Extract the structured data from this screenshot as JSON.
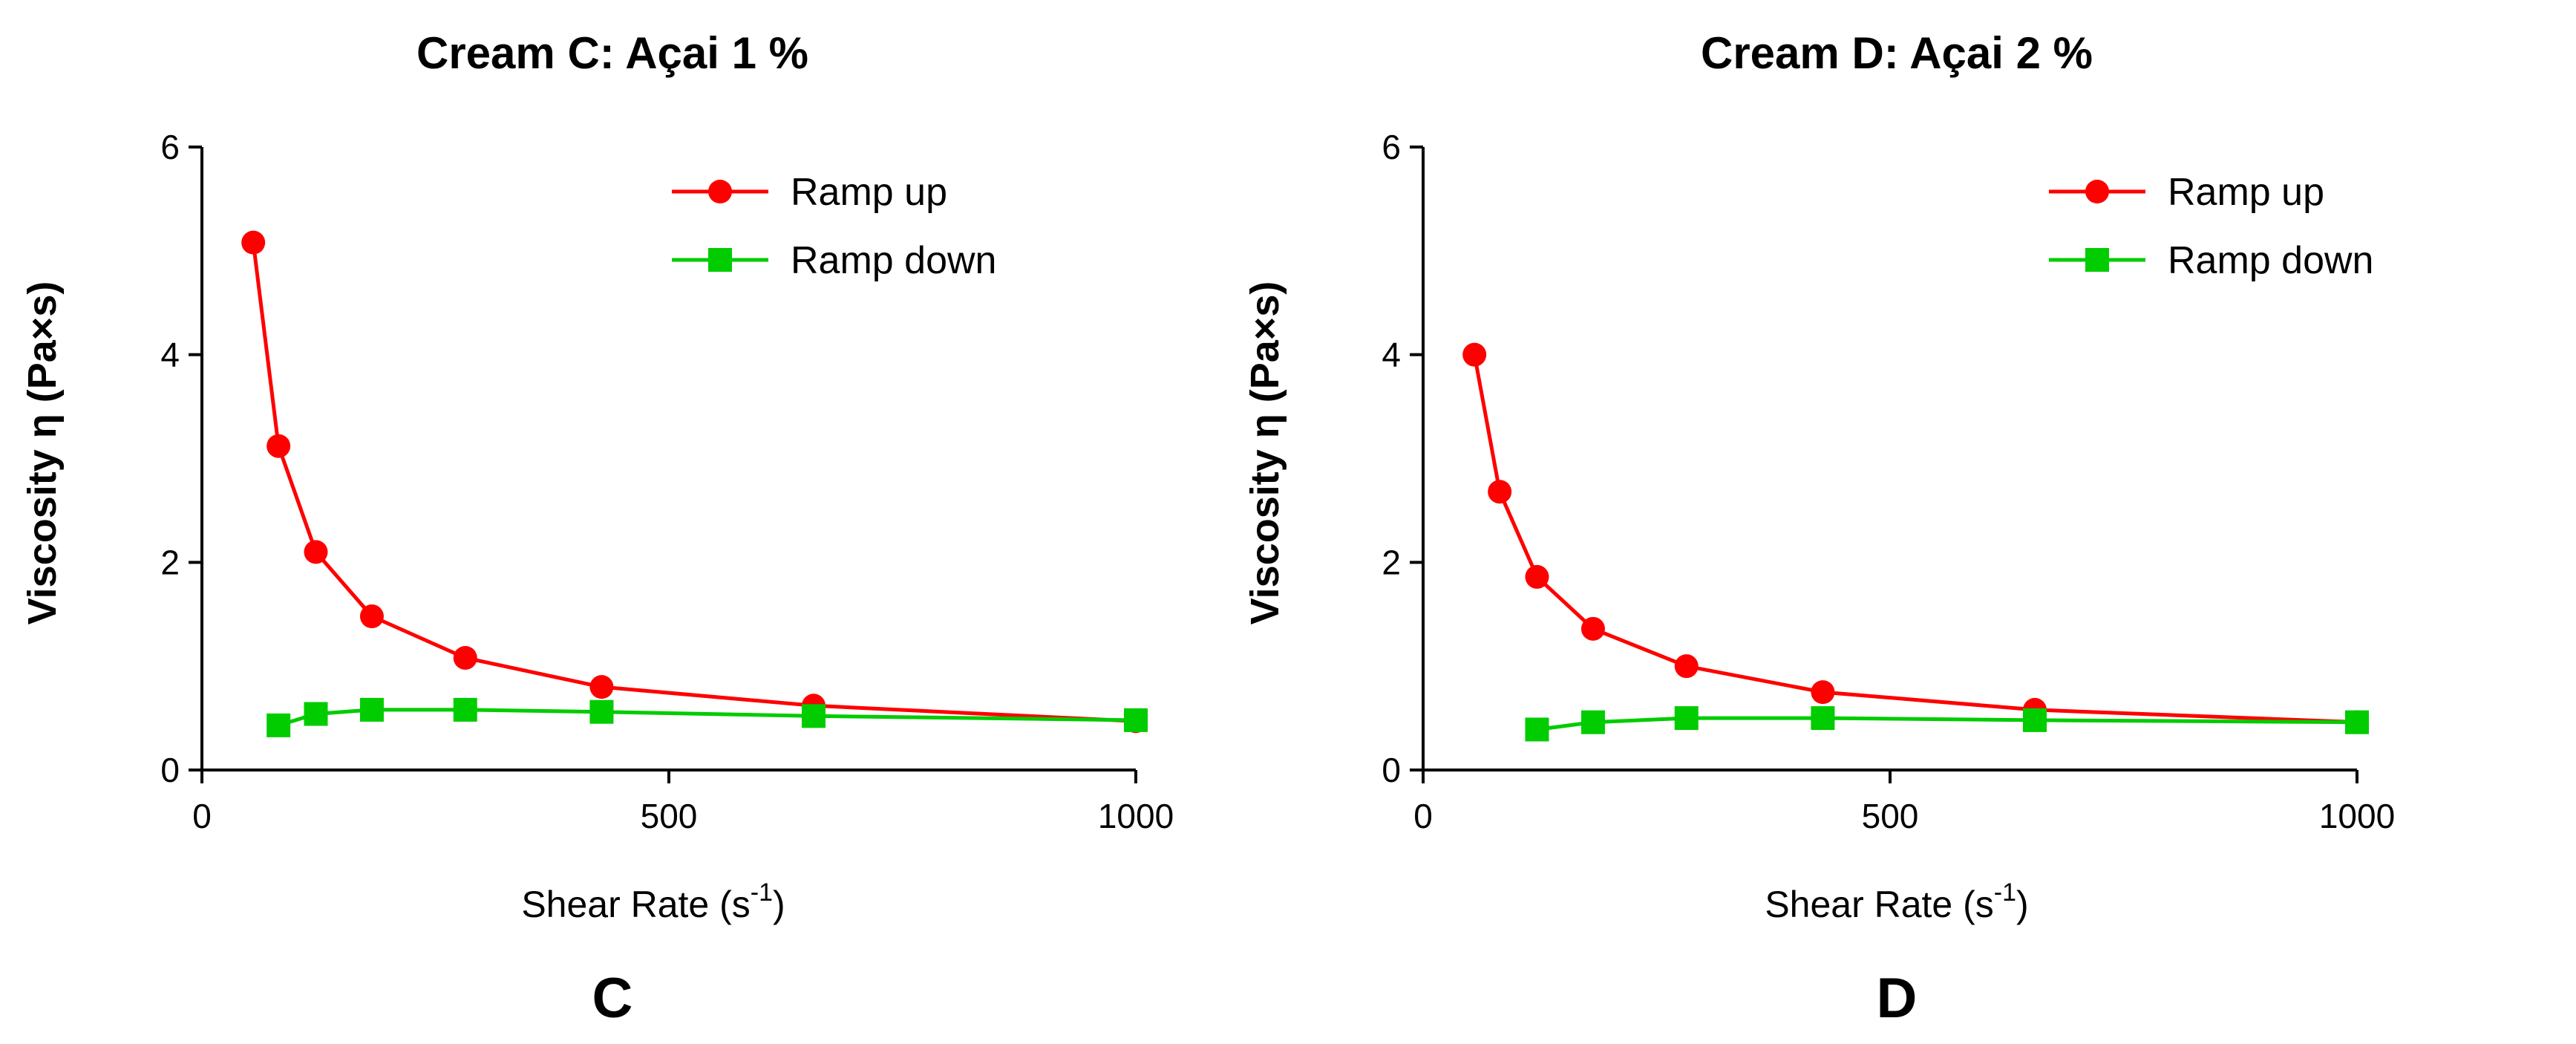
{
  "chart_data": [
    {
      "type": "line",
      "title": "Cream C: Açai 1 %",
      "panel_label": "C",
      "xlabel": "Shear Rate (s",
      "xlabel_sup": "-1",
      "xlabel_end": ")",
      "ylabel": "Viscosity η (Pa×s)",
      "xlim": [
        0,
        1000
      ],
      "ylim": [
        0,
        6
      ],
      "xticks": [
        "0",
        "500",
        "1000"
      ],
      "yticks": [
        "0",
        "2",
        "4",
        "6"
      ],
      "grid": false,
      "legend_position": "top-right",
      "series": [
        {
          "name": "Ramp up",
          "color": "#ff0000",
          "marker": "circle",
          "x": [
            55,
            82,
            122,
            182,
            282,
            428,
            655,
            1000
          ],
          "y": [
            5.08,
            3.12,
            2.1,
            1.48,
            1.08,
            0.8,
            0.62,
            0.47
          ]
        },
        {
          "name": "Ramp down",
          "color": "#00cc00",
          "marker": "square",
          "x": [
            82,
            122,
            182,
            282,
            428,
            655,
            1000
          ],
          "y": [
            0.43,
            0.54,
            0.58,
            0.58,
            0.56,
            0.52,
            0.48
          ]
        }
      ]
    },
    {
      "type": "line",
      "title": "Cream D: Açai 2 %",
      "panel_label": "D",
      "xlabel": "Shear Rate (s",
      "xlabel_sup": "-1",
      "xlabel_end": ")",
      "ylabel": "Viscosity η (Pa×s)",
      "xlim": [
        0,
        1000
      ],
      "ylim": [
        0,
        6
      ],
      "xticks": [
        "0",
        "500",
        "1000"
      ],
      "yticks": [
        "0",
        "2",
        "4",
        "6"
      ],
      "grid": false,
      "legend_position": "top-right",
      "series": [
        {
          "name": "Ramp up",
          "color": "#ff0000",
          "marker": "circle",
          "x": [
            55,
            82,
            122,
            182,
            282,
            428,
            655,
            1000
          ],
          "y": [
            4.0,
            2.68,
            1.86,
            1.36,
            1.0,
            0.75,
            0.58,
            0.46
          ]
        },
        {
          "name": "Ramp down",
          "color": "#00cc00",
          "marker": "square",
          "x": [
            122,
            182,
            282,
            428,
            655,
            1000
          ],
          "y": [
            0.39,
            0.46,
            0.5,
            0.5,
            0.48,
            0.46
          ]
        }
      ]
    }
  ]
}
